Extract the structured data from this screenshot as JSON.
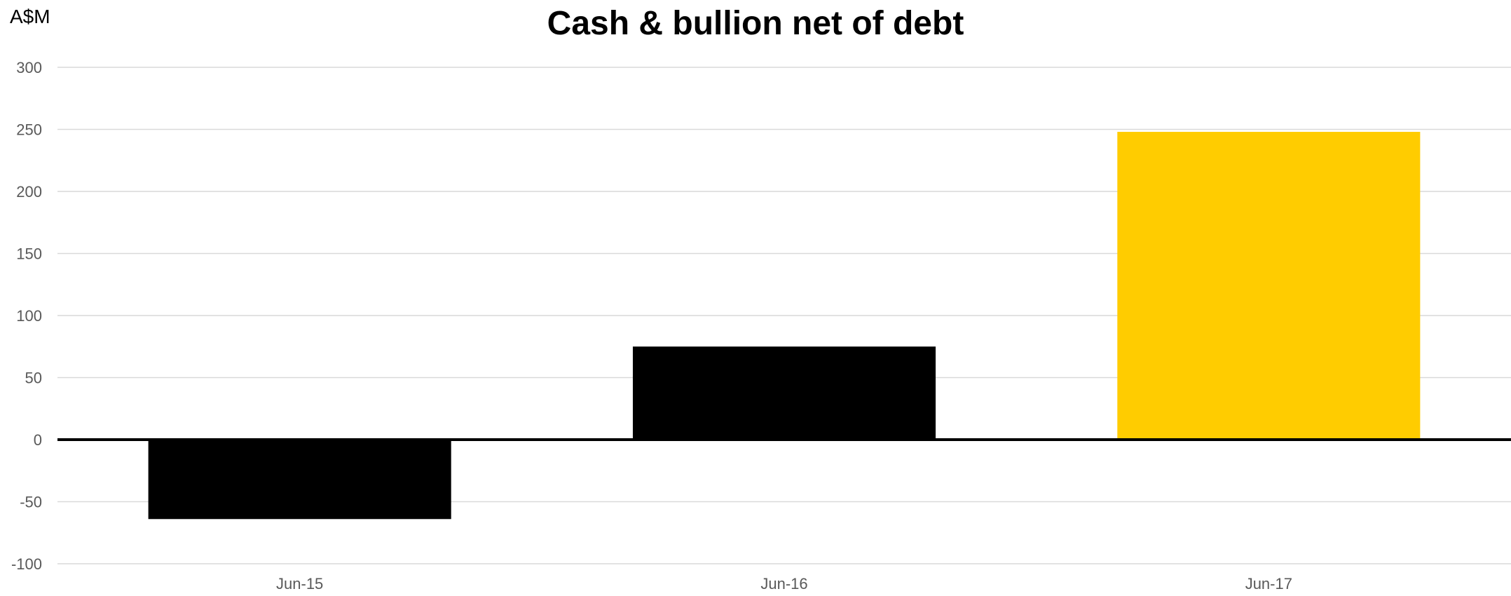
{
  "chart_data": {
    "type": "bar",
    "title": "Cash & bullion net of debt",
    "ylabel": "A$M",
    "xlabel": "",
    "categories": [
      "Jun-15",
      "Jun-16",
      "Jun-17"
    ],
    "values": [
      -64,
      75,
      248
    ],
    "bar_colors": [
      "#000000",
      "#000000",
      "#FFCC00"
    ],
    "ylim": [
      -100,
      300
    ],
    "yticks": [
      300,
      250,
      200,
      150,
      100,
      50,
      0,
      -50,
      -100
    ],
    "grid": true,
    "legend": "none"
  },
  "colors": {
    "gridline": "#D9D9D9",
    "zero_line": "#000000",
    "tick_label": "#595959"
  }
}
